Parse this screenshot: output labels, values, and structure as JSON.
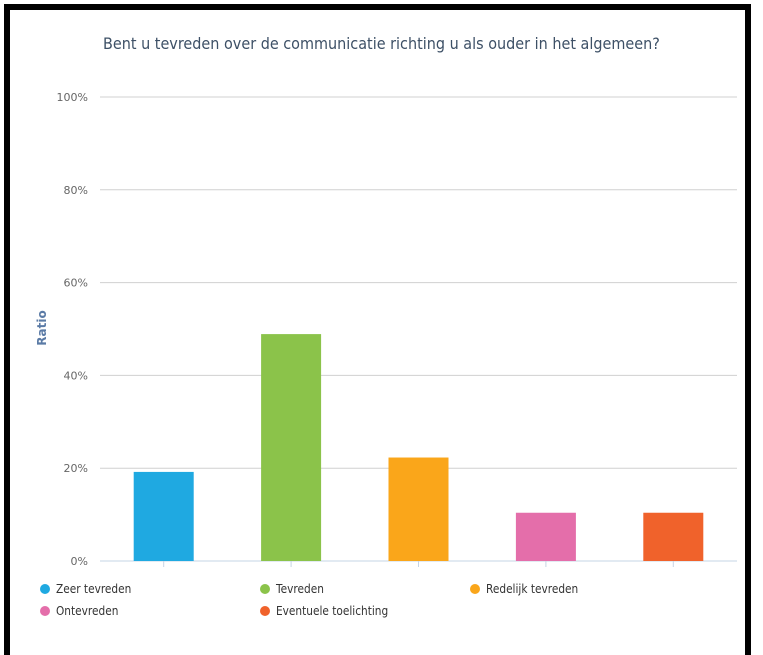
{
  "chart_data": {
    "type": "bar",
    "title": "Bent u tevreden over de communicatie richting u als ouder in het algemeen?",
    "ylabel": "Ratio",
    "xlabel": "",
    "ylim": [
      0,
      100
    ],
    "yticks": [
      "0%",
      "20%",
      "40%",
      "60%",
      "80%",
      "100%"
    ],
    "yticks_values": [
      0,
      20,
      40,
      60,
      80,
      100
    ],
    "grid": true,
    "legend_position": "bottom",
    "categories": [
      "Zeer tevreden",
      "Tevreden",
      "Redelijk tevreden",
      "Ontevreden",
      "Eventuele toelichting"
    ],
    "values": [
      19.2,
      48.9,
      22.3,
      10.4,
      10.4
    ],
    "colors": [
      "#1fa9e1",
      "#8bc34a",
      "#faa61a",
      "#e46eaa",
      "#f0622b"
    ]
  }
}
